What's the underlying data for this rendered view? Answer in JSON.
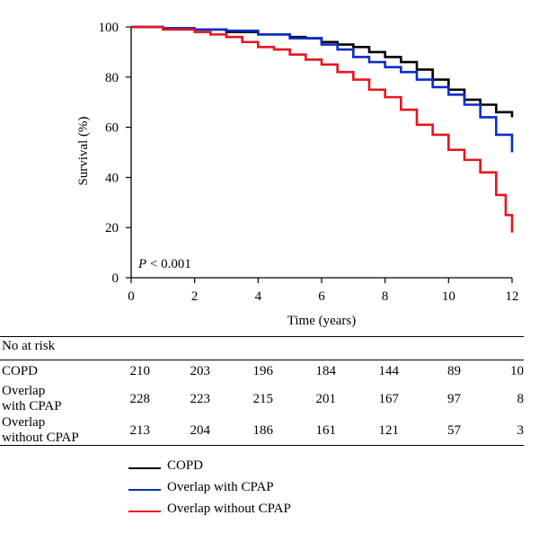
{
  "chart_data": {
    "type": "line",
    "title": "",
    "xlabel": "Time (years)",
    "ylabel": "Survival (%)",
    "xlim": [
      0,
      12
    ],
    "ylim": [
      0,
      100
    ],
    "xticks": [
      "0",
      "2",
      "4",
      "6",
      "8",
      "10",
      "12"
    ],
    "yticks": [
      "0",
      "20",
      "40",
      "60",
      "80",
      "100"
    ],
    "annotation": {
      "p_symbol": "P",
      "p_text": " < 0.001"
    },
    "grid": false,
    "legend_position": "bottom",
    "series": [
      {
        "name": "COPD",
        "color": "#000000",
        "x": [
          0,
          1,
          2,
          3,
          4,
          5,
          5.5,
          6,
          6.5,
          7,
          7.5,
          8,
          8.5,
          9,
          9.5,
          10,
          10.5,
          11,
          11.5,
          12
        ],
        "y": [
          100,
          99.5,
          99,
          98,
          97,
          96,
          95.5,
          94,
          93,
          92,
          90,
          88,
          86,
          83,
          79,
          75,
          71,
          69,
          66,
          64
        ]
      },
      {
        "name": "Overlap with CPAP",
        "color": "#0a2dc4",
        "x": [
          0,
          1,
          2,
          3,
          4,
          5,
          6,
          6.5,
          7,
          7.5,
          8,
          8.5,
          9,
          9.5,
          10,
          10.5,
          11,
          11.5,
          12
        ],
        "y": [
          100,
          99.5,
          99,
          98.5,
          97,
          95.5,
          93,
          91,
          88,
          86,
          84,
          82,
          79,
          76,
          73,
          69,
          64,
          57,
          50
        ]
      },
      {
        "name": "Overlap without CPAP",
        "color": "#e8141e",
        "x": [
          0,
          1,
          2,
          2.5,
          3,
          3.5,
          4,
          4.5,
          5,
          5.5,
          6,
          6.5,
          7,
          7.5,
          8,
          8.5,
          9,
          9.5,
          10,
          10.5,
          11,
          11.5,
          11.8,
          12
        ],
        "y": [
          100,
          99,
          98,
          97,
          96,
          94,
          92,
          91,
          89,
          87,
          85,
          82,
          79,
          75,
          72,
          67,
          61,
          57,
          51,
          47,
          42,
          33,
          25,
          18
        ]
      }
    ]
  },
  "risk_table": {
    "title": "No at risk",
    "rows": [
      {
        "label": [
          "COPD"
        ],
        "values": [
          "210",
          "203",
          "196",
          "184",
          "144",
          "89",
          "10"
        ]
      },
      {
        "label": [
          "Overlap",
          "with CPAP"
        ],
        "values": [
          "228",
          "223",
          "215",
          "201",
          "167",
          "97",
          "8"
        ]
      },
      {
        "label": [
          "Overlap",
          "without CPAP"
        ],
        "values": [
          "213",
          "204",
          "186",
          "161",
          "121",
          "57",
          "3"
        ]
      }
    ]
  },
  "legend": [
    {
      "label": "COPD",
      "color": "#000000"
    },
    {
      "label": "Overlap with CPAP",
      "color": "#0a2dc4"
    },
    {
      "label": "Overlap without CPAP",
      "color": "#e8141e"
    }
  ]
}
